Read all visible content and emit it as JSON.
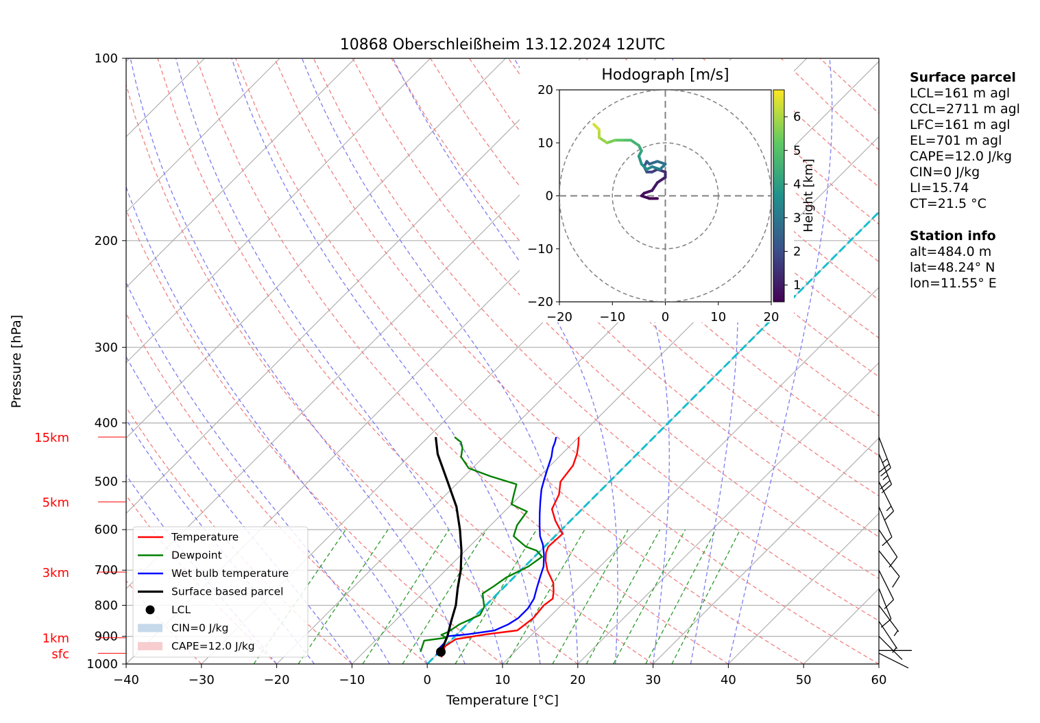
{
  "chart_data": {
    "type": "skew-t",
    "title": "10868 Oberschleißheim 13.12.2024 12UTC",
    "xlabel": "Temperature [°C]",
    "ylabel": "Pressure [hPa]",
    "xlim": [
      -40,
      60
    ],
    "ylim": [
      1000,
      100
    ],
    "x_ticks": [
      -40,
      -30,
      -20,
      -10,
      0,
      10,
      20,
      30,
      40,
      50,
      60
    ],
    "y_ticks": [
      1000,
      900,
      800,
      700,
      600,
      500,
      400,
      300,
      200,
      100
    ],
    "height_markers": [
      {
        "label": "sfc",
        "pressure": 960
      },
      {
        "label": "1km",
        "pressure": 905
      },
      {
        "label": "3km",
        "pressure": 705
      },
      {
        "label": "5km",
        "pressure": 540
      },
      {
        "label": "15km",
        "pressure": 422
      }
    ],
    "legend": [
      {
        "label": "Temperature",
        "color": "#ff0000",
        "kind": "line"
      },
      {
        "label": "Dewpoint",
        "color": "#008000",
        "kind": "line"
      },
      {
        "label": "Wet bulb temperature",
        "color": "#0000ff",
        "kind": "line"
      },
      {
        "label": "Surface based parcel",
        "color": "#000000",
        "kind": "thickline"
      },
      {
        "label": "LCL",
        "color": "#000000",
        "kind": "dot"
      },
      {
        "label": "CIN=0 J/kg",
        "color": "#c6d9ea",
        "kind": "patch"
      },
      {
        "label": "CAPE=12.0 J/kg",
        "color": "#f7cdd0",
        "kind": "patch"
      }
    ],
    "legend_location": "lower-left",
    "series": [
      {
        "name": "Temperature",
        "color": "#ff0000",
        "points": [
          [
            1.0,
            975
          ],
          [
            0.5,
            955
          ],
          [
            0.0,
            935
          ],
          [
            0.5,
            910
          ],
          [
            4.0,
            893
          ],
          [
            7.5,
            880
          ],
          [
            8.0,
            840
          ],
          [
            7.7,
            800
          ],
          [
            8.0,
            780
          ],
          [
            7.2,
            760
          ],
          [
            6.0,
            735
          ],
          [
            3.5,
            700
          ],
          [
            2.0,
            675
          ],
          [
            1.0,
            655
          ],
          [
            0.5,
            640
          ],
          [
            0.7,
            610
          ],
          [
            -2.0,
            580
          ],
          [
            -4.0,
            555
          ],
          [
            -5.0,
            525
          ],
          [
            -6.5,
            500
          ],
          [
            -7.0,
            470
          ],
          [
            -8.0,
            450
          ],
          [
            -9.0,
            435
          ],
          [
            -10.0,
            422
          ]
        ]
      },
      {
        "name": "Dewpoint",
        "color": "#008000",
        "points": [
          [
            -2.5,
            955
          ],
          [
            -3.0,
            935
          ],
          [
            -3.5,
            915
          ],
          [
            -1.0,
            905
          ],
          [
            -2.0,
            895
          ],
          [
            -1.5,
            885
          ],
          [
            -1.0,
            860
          ],
          [
            0.5,
            830
          ],
          [
            0.0,
            805
          ],
          [
            -1.0,
            785
          ],
          [
            -2.0,
            765
          ],
          [
            -1.5,
            745
          ],
          [
            -1.0,
            720
          ],
          [
            0.5,
            690
          ],
          [
            1.0,
            665
          ],
          [
            -0.5,
            650
          ],
          [
            -2.5,
            640
          ],
          [
            -5.5,
            615
          ],
          [
            -6.5,
            590
          ],
          [
            -7.0,
            560
          ],
          [
            -10.0,
            545
          ],
          [
            -11.0,
            525
          ],
          [
            -12.0,
            505
          ],
          [
            -16.5,
            490
          ],
          [
            -20.5,
            475
          ],
          [
            -23.0,
            455
          ],
          [
            -24.0,
            440
          ],
          [
            -25.0,
            430
          ],
          [
            -26.5,
            422
          ]
        ]
      },
      {
        "name": "Wet bulb temperature",
        "color": "#0000ff",
        "points": [
          [
            0.0,
            965
          ],
          [
            -0.5,
            945
          ],
          [
            -0.5,
            925
          ],
          [
            -1.0,
            900
          ],
          [
            1.5,
            893
          ],
          [
            4.5,
            880
          ],
          [
            5.5,
            860
          ],
          [
            6.0,
            840
          ],
          [
            6.0,
            810
          ],
          [
            5.5,
            780
          ],
          [
            4.5,
            750
          ],
          [
            3.5,
            720
          ],
          [
            2.5,
            690
          ],
          [
            1.0,
            660
          ],
          [
            -0.5,
            635
          ],
          [
            -2.0,
            615
          ],
          [
            -3.5,
            590
          ],
          [
            -5.0,
            565
          ],
          [
            -6.5,
            540
          ],
          [
            -8.0,
            515
          ],
          [
            -9.0,
            495
          ],
          [
            -10.0,
            475
          ],
          [
            -11.0,
            455
          ],
          [
            -12.0,
            440
          ],
          [
            -12.5,
            430
          ],
          [
            -13.0,
            422
          ]
        ]
      },
      {
        "name": "Surface based parcel",
        "color": "#000000",
        "points": [
          [
            0.5,
            960
          ],
          [
            0.2,
            955
          ],
          [
            -1.0,
            900
          ],
          [
            -2.5,
            850
          ],
          [
            -4.0,
            800
          ],
          [
            -6.0,
            750
          ],
          [
            -8.0,
            700
          ],
          [
            -10.5,
            650
          ],
          [
            -13.5,
            600
          ],
          [
            -17.0,
            550
          ],
          [
            -21.5,
            500
          ],
          [
            -26.5,
            450
          ],
          [
            -29.0,
            422
          ]
        ]
      }
    ],
    "lcl": {
      "label": "LCL",
      "temperature": 0.2,
      "pressure": 955
    },
    "cape_shading": "CAPE=12.0 J/kg",
    "cin_shading": "CIN=0 J/kg",
    "wind_barbs": [
      {
        "pressure": 422,
        "u": -5,
        "v": 13
      },
      {
        "pressure": 450,
        "u": -5,
        "v": 12
      },
      {
        "pressure": 500,
        "u": -4,
        "v": 8
      },
      {
        "pressure": 550,
        "u": -3,
        "v": 7
      },
      {
        "pressure": 600,
        "u": -4,
        "v": 6
      },
      {
        "pressure": 650,
        "u": -4,
        "v": 5
      },
      {
        "pressure": 700,
        "u": -3,
        "v": 6
      },
      {
        "pressure": 750,
        "u": -2,
        "v": 5
      },
      {
        "pressure": 800,
        "u": -3,
        "v": 4
      },
      {
        "pressure": 850,
        "u": -2,
        "v": 3
      },
      {
        "pressure": 900,
        "u": -1,
        "v": 1
      },
      {
        "pressure": 950,
        "u": -1,
        "v": 0
      },
      {
        "pressure": 960,
        "u": -2,
        "v": 1
      }
    ],
    "hodograph": {
      "title": "Hodograph [m/s]",
      "xlim": [
        -20,
        20
      ],
      "ylim": [
        -20,
        20
      ],
      "ticks": [
        -20,
        -10,
        0,
        10,
        20
      ],
      "rings": [
        10,
        20
      ],
      "colorbar_label": "Height [km]",
      "colorbar_ticks": [
        1,
        2,
        3,
        4,
        5,
        6
      ],
      "colorbar_range": [
        0.5,
        6.8
      ],
      "points": [
        {
          "u": -1.5,
          "v": -0.5,
          "h": 0.5
        },
        {
          "u": -3.0,
          "v": -0.5,
          "h": 0.6
        },
        {
          "u": -4.5,
          "v": 0.0,
          "h": 0.7
        },
        {
          "u": -4.0,
          "v": 0.5,
          "h": 0.8
        },
        {
          "u": -2.5,
          "v": 1.0,
          "h": 0.9
        },
        {
          "u": -1.5,
          "v": 2.5,
          "h": 1.0
        },
        {
          "u": 0.0,
          "v": 3.5,
          "h": 1.2
        },
        {
          "u": 0.0,
          "v": 4.5,
          "h": 1.4
        },
        {
          "u": -1.5,
          "v": 5.0,
          "h": 1.6
        },
        {
          "u": -2.5,
          "v": 4.5,
          "h": 1.8
        },
        {
          "u": -3.5,
          "v": 4.5,
          "h": 2.0
        },
        {
          "u": -4.0,
          "v": 5.5,
          "h": 2.2
        },
        {
          "u": -3.5,
          "v": 6.5,
          "h": 2.4
        },
        {
          "u": -3.0,
          "v": 6.0,
          "h": 2.6
        },
        {
          "u": -1.5,
          "v": 6.5,
          "h": 2.8
        },
        {
          "u": 0.0,
          "v": 6.0,
          "h": 3.0
        },
        {
          "u": -1.0,
          "v": 5.0,
          "h": 3.2
        },
        {
          "u": -2.5,
          "v": 5.5,
          "h": 3.4
        },
        {
          "u": -3.5,
          "v": 5.0,
          "h": 3.6
        },
        {
          "u": -4.5,
          "v": 6.0,
          "h": 3.8
        },
        {
          "u": -5.0,
          "v": 7.5,
          "h": 4.0
        },
        {
          "u": -4.5,
          "v": 8.5,
          "h": 4.3
        },
        {
          "u": -5.0,
          "v": 9.5,
          "h": 4.6
        },
        {
          "u": -6.5,
          "v": 10.5,
          "h": 4.9
        },
        {
          "u": -8.0,
          "v": 10.5,
          "h": 5.2
        },
        {
          "u": -9.5,
          "v": 10.5,
          "h": 5.5
        },
        {
          "u": -11.0,
          "v": 10.0,
          "h": 5.8
        },
        {
          "u": -12.5,
          "v": 11.0,
          "h": 6.1
        },
        {
          "u": -12.5,
          "v": 12.5,
          "h": 6.4
        },
        {
          "u": -13.5,
          "v": 13.5,
          "h": 6.7
        }
      ]
    }
  },
  "surface_parcel": {
    "heading": "Surface parcel",
    "lines": [
      "LCL=161 m agl",
      "CCL=2711 m agl",
      "LFC=161 m agl",
      "EL=701 m agl",
      "CAPE=12.0 J/kg",
      "CIN=0 J/kg",
      "LI=15.74",
      "CT=21.5 °C"
    ]
  },
  "station_info": {
    "heading": "Station info",
    "lines": [
      "alt=484.0 m",
      "lat=48.24° N",
      "lon=11.55° E"
    ]
  }
}
